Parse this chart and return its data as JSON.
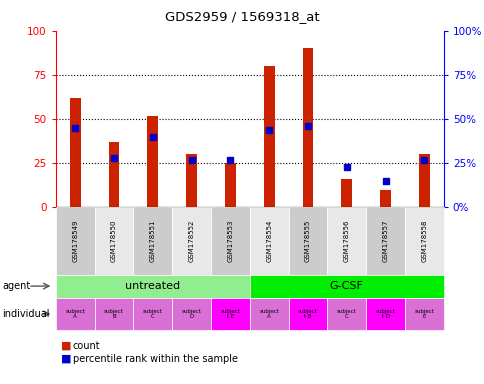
{
  "title": "GDS2959 / 1569318_at",
  "samples": [
    "GSM178549",
    "GSM178550",
    "GSM178551",
    "GSM178552",
    "GSM178553",
    "GSM178554",
    "GSM178555",
    "GSM178556",
    "GSM178557",
    "GSM178558"
  ],
  "count_values": [
    62,
    37,
    52,
    30,
    25,
    80,
    90,
    16,
    10,
    30
  ],
  "percentile_values": [
    45,
    28,
    40,
    27,
    27,
    44,
    46,
    23,
    15,
    27
  ],
  "agent_groups": [
    {
      "label": "untreated",
      "start": 0,
      "end": 5,
      "color": "#90ee90"
    },
    {
      "label": "G-CSF",
      "start": 5,
      "end": 10,
      "color": "#00ee00"
    }
  ],
  "individual_labels": [
    "subject\nA",
    "subject\nB",
    "subject\nC",
    "subject\nD",
    "subject\nt E",
    "subject\nA",
    "subject\nt B",
    "subject\nC",
    "subject\nt D",
    "subject\nE"
  ],
  "individual_colors": [
    "#da70d6",
    "#da70d6",
    "#da70d6",
    "#da70d6",
    "#ff00ff",
    "#da70d6",
    "#ff00ff",
    "#da70d6",
    "#ff00ff",
    "#da70d6"
  ],
  "ylim": [
    0,
    100
  ],
  "y_ticks": [
    0,
    25,
    50,
    75,
    100
  ],
  "bar_color": "#cc2200",
  "percentile_color": "#0000cc",
  "tick_label_bg_even": "#cccccc",
  "tick_label_bg_odd": "#e8e8e8"
}
